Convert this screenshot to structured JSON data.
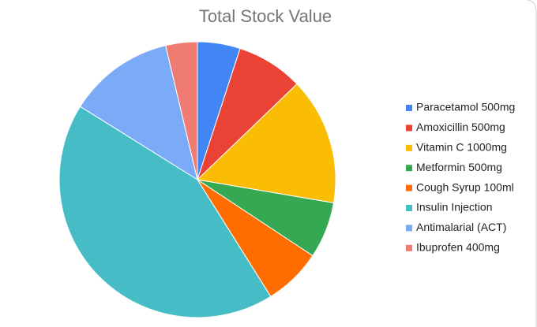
{
  "chart_data": {
    "type": "pie",
    "title": "Total Stock Value",
    "categories": [
      "Paracetamol 500mg",
      "Amoxicillin 500mg",
      "Vitamin C 1000mg",
      "Metformin 500mg",
      "Cough Syrup 100ml",
      "Insulin Injection",
      "Antimalarial (ACT)",
      "Ibuprofen 400mg"
    ],
    "values": [
      5,
      7.8,
      14.9,
      6.6,
      6.8,
      42.8,
      12.4,
      3.7
    ],
    "colors": [
      "#4285f4",
      "#ea4335",
      "#fbbc04",
      "#34a853",
      "#ff6d01",
      "#46bdc6",
      "#7baaf7",
      "#f07b72"
    ],
    "legend": "right"
  }
}
